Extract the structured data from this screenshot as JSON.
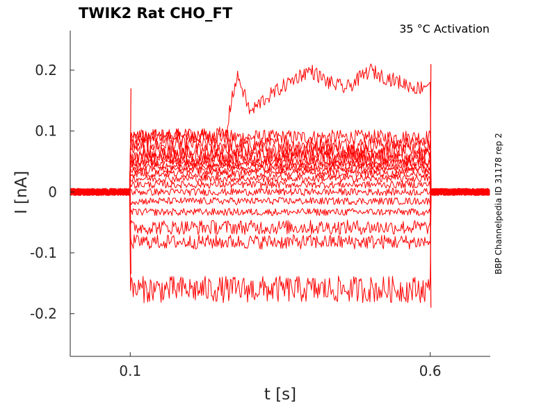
{
  "chart_data": {
    "type": "line",
    "title": "TWIK2  Rat  CHO_FT",
    "annotation": "35 °C  Activation",
    "side_note": "BBP Channelpedia ID 31178 rep 2",
    "xlabel": "t [s]",
    "ylabel": "I [nA]",
    "xlim": [
      0.0,
      0.7
    ],
    "ylim": [
      -0.27,
      0.265
    ],
    "x_ticks": [
      {
        "value": 0.1,
        "label": "0.1"
      },
      {
        "value": 0.6,
        "label": "0.6"
      }
    ],
    "y_ticks": [
      {
        "value": 0.2,
        "label": "0.2"
      },
      {
        "value": 0.1,
        "label": "0.1"
      },
      {
        "value": 0.0,
        "label": "0"
      },
      {
        "value": -0.1,
        "label": "-0.1"
      },
      {
        "value": -0.2,
        "label": "-0.2"
      }
    ],
    "grid": false,
    "trace_color": "#ff0000",
    "step_on": 0.1,
    "step_off": 0.6,
    "baseline_nA": 0.0,
    "series_step_levels_nA": [
      0.09,
      0.078,
      0.068,
      0.06,
      0.053,
      0.047,
      0.041,
      0.036,
      0.03,
      0.022,
      0.012,
      0.0,
      -0.015,
      -0.033,
      -0.058,
      -0.082,
      -0.16
    ],
    "rising_sweep": {
      "x": [
        0.1,
        0.26,
        0.27,
        0.28,
        0.3,
        0.32,
        0.35,
        0.38,
        0.4,
        0.43,
        0.46,
        0.5,
        0.52,
        0.55,
        0.58,
        0.6
      ],
      "y": [
        0.09,
        0.095,
        0.16,
        0.19,
        0.13,
        0.15,
        0.17,
        0.19,
        0.2,
        0.18,
        0.17,
        0.2,
        0.19,
        0.18,
        0.17,
        0.18
      ]
    }
  }
}
